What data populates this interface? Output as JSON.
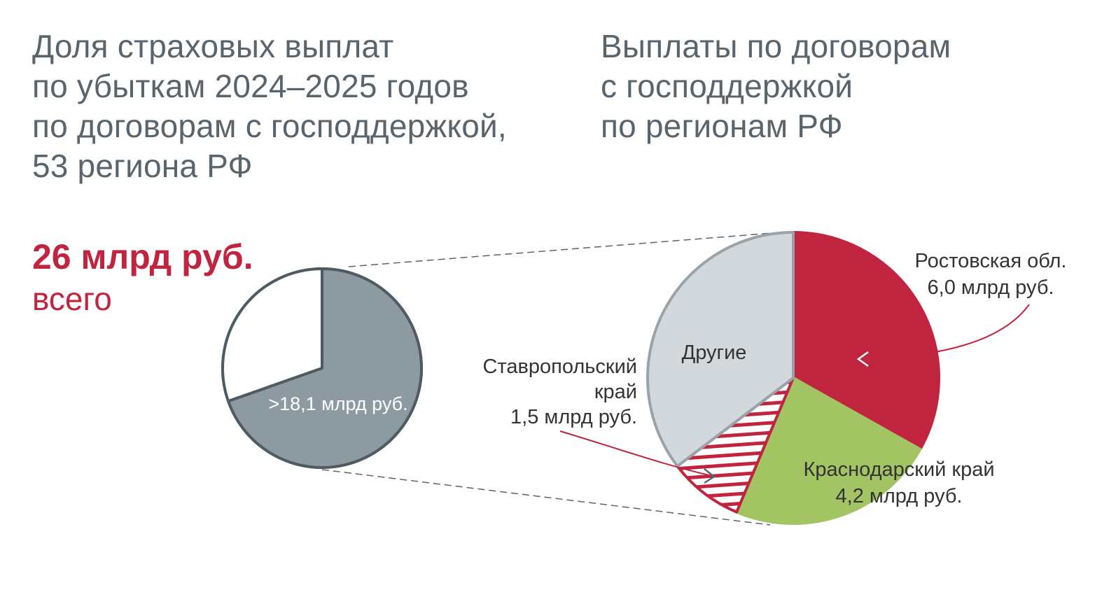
{
  "title_left": {
    "lines": [
      "Доля страховых выплат",
      "по убыткам 2024–2025 годов",
      "по договорам с господдержкой,",
      "53 региона РФ"
    ]
  },
  "title_right": {
    "lines": [
      "Выплаты по договорам",
      "с господдержкой",
      "по регионам РФ"
    ]
  },
  "total": {
    "value": "26 млрд руб.",
    "label": "всего"
  },
  "colors": {
    "title": "#5a646c",
    "accent": "#c0243e",
    "gray_slice": "#8d9aa2",
    "gray_outline": "#4f5b63",
    "others": "#d3d8dc",
    "others_outline": "#9aa3a9",
    "rostov": "#c0243e",
    "krasnodar": "#a2c462",
    "stavropol_hatch": "#c0243e"
  },
  "chart_data": [
    {
      "type": "pie",
      "title": "Доля страховых выплат по убыткам 2024–2025 годов по договорам с господдержкой, 53 региона РФ",
      "total": 26,
      "unit": "млрд руб.",
      "slices": [
        {
          "label": ">18,1 млрд руб.",
          "value": 18.1
        },
        {
          "label": "",
          "value": 7.9
        }
      ]
    },
    {
      "type": "pie",
      "title": "Выплаты по договорам с господдержкой по регионам РФ",
      "unit": "млрд руб.",
      "slices": [
        {
          "label": "Ростовская обл.",
          "value_text": "6,0 млрд руб.",
          "value": 6.0
        },
        {
          "label": "Краснодарский край",
          "value_text": "4,2 млрд руб.",
          "value": 4.2
        },
        {
          "label": "Ставропольский край",
          "value_text": "1,5 млрд руб.",
          "value": 1.5
        },
        {
          "label": "Другие",
          "value_text": "",
          "value": 6.4
        }
      ]
    }
  ],
  "labels": {
    "left_slice": ">18,1 млрд руб.",
    "others": "Другие",
    "rostov_name": "Ростовская обл.",
    "rostov_value": "6,0 млрд руб.",
    "krasnodar_name": "Краснодарский край",
    "krasnodar_value": "4,2 млрд руб.",
    "stavropol_line1": "Ставропольский",
    "stavropol_line2": "край",
    "stavropol_value": "1,5 млрд руб."
  }
}
